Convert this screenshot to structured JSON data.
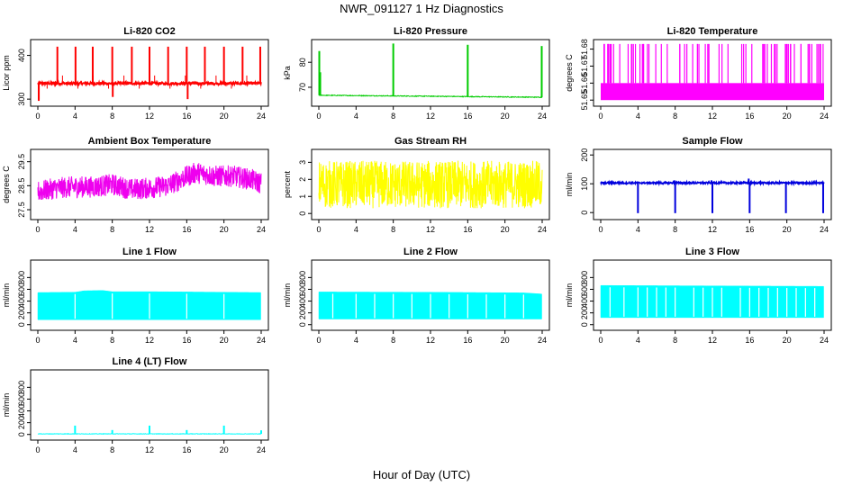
{
  "figure": {
    "title": "NWR_091127  1 Hz Diagnostics",
    "xlabel": "Hour of Day (UTC)"
  },
  "chart_data": [
    {
      "id": "co2",
      "type": "line",
      "title": "Li-820 CO2",
      "ylabel": "Licor ppm",
      "color": "#ff0000",
      "xlim": [
        0,
        24
      ],
      "ylim": [
        290,
        430
      ],
      "xticks": [
        "0",
        "4",
        "8",
        "12",
        "16",
        "20",
        "24"
      ],
      "yticks": [
        300,
        400
      ],
      "ytick_labels": [
        "300",
        "400"
      ],
      "baseline": 336,
      "noise": 3,
      "end_hour": 24,
      "events": [
        {
          "x": 0.1,
          "y": 296
        },
        {
          "x": 0.1,
          "y": 300
        },
        {
          "x": 2.1,
          "y": 420
        },
        {
          "x": 4.05,
          "y": 420
        },
        {
          "x": 5.9,
          "y": 420
        },
        {
          "x": 8.0,
          "y": 420
        },
        {
          "x": 8.05,
          "y": 305
        },
        {
          "x": 10.1,
          "y": 420
        },
        {
          "x": 12.0,
          "y": 420
        },
        {
          "x": 14.0,
          "y": 420
        },
        {
          "x": 16.0,
          "y": 420
        },
        {
          "x": 16.1,
          "y": 300
        },
        {
          "x": 17.95,
          "y": 420
        },
        {
          "x": 20.0,
          "y": 420
        },
        {
          "x": 22.0,
          "y": 420
        },
        {
          "x": 23.9,
          "y": 420
        }
      ]
    },
    {
      "id": "pressure",
      "type": "line",
      "title": "Li-820 Pressure",
      "ylabel": "kPa",
      "color": "#00cc00",
      "xlim": [
        0,
        24
      ],
      "ylim": [
        63.5,
        88
      ],
      "xticks": [
        "0",
        "4",
        "8",
        "12",
        "16",
        "20",
        "24"
      ],
      "yticks": [
        70,
        80
      ],
      "ytick_labels": [
        "70",
        "80"
      ],
      "baseline_start": 66.8,
      "baseline_end": 66.0,
      "noise": 0.15,
      "end_hour": 24,
      "events": [
        {
          "x": 0.05,
          "y": 84.5
        },
        {
          "x": 0.15,
          "y": 76
        },
        {
          "x": 8.0,
          "y": 87.5
        },
        {
          "x": 16.0,
          "y": 87
        },
        {
          "x": 23.95,
          "y": 86.5
        }
      ]
    },
    {
      "id": "licor_temp",
      "type": "line",
      "title": "Li-820 Temperature",
      "ylabel": "degrees C",
      "color": "#ff00ff",
      "xlim": [
        0,
        24
      ],
      "ylim": [
        51.648,
        51.684
      ],
      "xticks": [
        "0",
        "4",
        "8",
        "12",
        "16",
        "20",
        "24"
      ],
      "yticks": [
        51.65,
        51.66,
        51.67,
        51.68
      ],
      "ytick_labels": [
        "51.65",
        "51.66",
        "51.67",
        "51.68"
      ],
      "low": 51.65,
      "high": 51.66,
      "spike": 51.683,
      "end_hour": 24
    },
    {
      "id": "box_temp",
      "type": "line",
      "title": "Ambient Box Temperature",
      "ylabel": "degrees C",
      "color": "#ee00ee",
      "xlim": [
        0,
        24
      ],
      "ylim": [
        27.2,
        29.9
      ],
      "xticks": [
        "0",
        "4",
        "8",
        "12",
        "16",
        "20",
        "24"
      ],
      "yticks": [
        27.5,
        28.5,
        29.5
      ],
      "ytick_labels": [
        "27.5",
        "28.5",
        "29.5"
      ],
      "profile_x": [
        0,
        2,
        4,
        6,
        8,
        10,
        12,
        14,
        15.5,
        17,
        19,
        21,
        23,
        24
      ],
      "profile_y": [
        28.25,
        28.4,
        28.45,
        28.45,
        28.55,
        28.35,
        28.4,
        28.5,
        28.8,
        29.05,
        28.9,
        28.9,
        28.75,
        28.6
      ],
      "noise": 0.45,
      "end_hour": 24
    },
    {
      "id": "rh",
      "type": "line",
      "title": "Gas Stream RH",
      "ylabel": "percent",
      "color": "#ffff00",
      "xlim": [
        0,
        24
      ],
      "ylim": [
        -0.2,
        3.6
      ],
      "xticks": [
        "0",
        "4",
        "8",
        "12",
        "16",
        "20",
        "24"
      ],
      "yticks": [
        0,
        1,
        2,
        3
      ],
      "ytick_labels": [
        "0",
        "1",
        "2",
        "3"
      ],
      "center": 1.7,
      "noise": 1.4,
      "end_hour": 24
    },
    {
      "id": "sample_flow",
      "type": "line",
      "title": "Sample Flow",
      "ylabel": "ml/min",
      "color": "#0000dd",
      "xlim": [
        0,
        24
      ],
      "ylim": [
        -15,
        210
      ],
      "xticks": [
        "0",
        "4",
        "8",
        "12",
        "16",
        "20",
        "24"
      ],
      "yticks": [
        0,
        100,
        200
      ],
      "ytick_labels": [
        "0",
        "100",
        "200"
      ],
      "baseline": 103,
      "noise": 3,
      "end_hour": 24,
      "events": [
        {
          "x": 4.0,
          "y": -2
        },
        {
          "x": 7.9,
          "y": 112
        },
        {
          "x": 8.0,
          "y": -2
        },
        {
          "x": 11.9,
          "y": 112
        },
        {
          "x": 12.0,
          "y": -2
        },
        {
          "x": 15.9,
          "y": 118
        },
        {
          "x": 16.0,
          "y": -2
        },
        {
          "x": 19.9,
          "y": -2
        },
        {
          "x": 23.9,
          "y": -2
        }
      ]
    },
    {
      "id": "line1",
      "type": "area",
      "title": "Line 1 Flow",
      "ylabel": "ml/min",
      "color": "#00ffff",
      "xlim": [
        0,
        24
      ],
      "ylim": [
        -50,
        1050
      ],
      "xticks": [
        "0",
        "4",
        "8",
        "12",
        "16",
        "20",
        "24"
      ],
      "yticks": [
        0,
        200,
        400,
        600,
        800
      ],
      "ytick_labels": [
        "0",
        "200",
        "400",
        "600",
        "800"
      ],
      "top_x": [
        0,
        4,
        5,
        7,
        8,
        12,
        16,
        20,
        24
      ],
      "top_y": [
        545,
        550,
        575,
        580,
        560,
        560,
        555,
        550,
        545
      ],
      "bottom": 85,
      "end_hour": 23.95,
      "gaps": [
        4.0,
        8.0,
        12.0,
        16.0,
        20.0
      ]
    },
    {
      "id": "line2",
      "type": "area",
      "title": "Line 2 Flow",
      "ylabel": "ml/min",
      "color": "#00ffff",
      "xlim": [
        0,
        24
      ],
      "ylim": [
        -50,
        1050
      ],
      "xticks": [
        "0",
        "4",
        "8",
        "12",
        "16",
        "20",
        "24"
      ],
      "yticks": [
        0,
        200,
        400,
        600,
        800
      ],
      "ytick_labels": [
        "0",
        "200",
        "400",
        "600",
        "800"
      ],
      "top_x": [
        0,
        12,
        22,
        24
      ],
      "top_y": [
        555,
        550,
        540,
        520
      ],
      "bottom": 95,
      "end_hour": 23.95,
      "gaps": [
        1.5,
        4.0,
        6.0,
        8.0,
        10.0,
        12.0,
        14.0,
        16.0,
        18.0,
        20.0,
        22.0
      ]
    },
    {
      "id": "line3",
      "type": "area",
      "title": "Line 3 Flow",
      "ylabel": "ml/min",
      "color": "#00ffff",
      "xlim": [
        0,
        24
      ],
      "ylim": [
        -50,
        1050
      ],
      "xticks": [
        "0",
        "4",
        "8",
        "12",
        "16",
        "20",
        "24"
      ],
      "yticks": [
        0,
        200,
        400,
        600,
        800
      ],
      "ytick_labels": [
        "0",
        "200",
        "400",
        "600",
        "800"
      ],
      "top_x": [
        0,
        24
      ],
      "top_y": [
        665,
        650
      ],
      "bottom": 120,
      "end_hour": 23.95,
      "gaps": [
        1.0,
        2.5,
        4.0,
        5.0,
        6.0,
        7.0,
        8.0,
        10.0,
        11.0,
        12.0,
        13.0,
        15.0,
        16.0,
        17.0,
        18.0,
        19.0,
        20.0,
        21.0,
        22.0,
        23.0
      ]
    },
    {
      "id": "line4",
      "type": "line",
      "title": "Line 4 (LT) Flow",
      "ylabel": "ml/min",
      "color": "#00ffff",
      "xlim": [
        0,
        24
      ],
      "ylim": [
        -50,
        1050
      ],
      "xticks": [
        "0",
        "4",
        "8",
        "12",
        "16",
        "20",
        "24"
      ],
      "yticks": [
        0,
        200,
        400,
        600,
        800
      ],
      "ytick_labels": [
        "0",
        "200",
        "400",
        "600",
        "800"
      ],
      "baseline": 10,
      "noise": 4,
      "end_hour": 24,
      "events": [
        {
          "x": 4.0,
          "y": 150
        },
        {
          "x": 8.0,
          "y": 75
        },
        {
          "x": 12.0,
          "y": 150
        },
        {
          "x": 16.0,
          "y": 75
        },
        {
          "x": 20.0,
          "y": 150
        },
        {
          "x": 24.0,
          "y": 70
        }
      ]
    }
  ]
}
